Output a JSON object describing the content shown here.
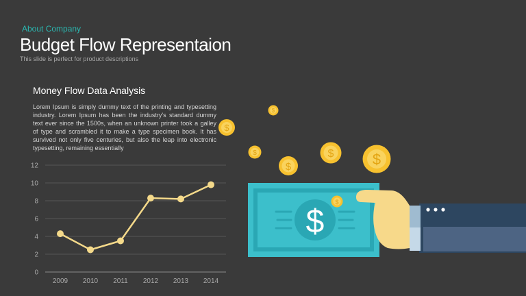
{
  "header": {
    "kicker": "About Company",
    "title": "Budget Flow Representaion",
    "subtitle": "This slide is perfect for product descriptions"
  },
  "section": {
    "title": "Money Flow Data Analysis",
    "body": "Lorem Ipsum is simply dummy text of the printing and typesetting industry. Lorem Ipsum has been the industry's standard dummy text ever since the 1500s, when an unknown printer took a galley of type and scrambled it to make a type specimen book. It has survived not only five centuries, but also the leap into electronic typesetting, remaining essentially"
  },
  "colors": {
    "background": "#3a3a3a",
    "accent": "#2bb7b0",
    "line": "#f4d98a",
    "coin": "#f7c12f",
    "bill": "#3cbfcb",
    "sleeve": "#2d4660"
  },
  "illustration": {
    "bill_symbol": "$",
    "coin_symbol": "$"
  },
  "chart_data": {
    "type": "line",
    "categories": [
      "2009",
      "2010",
      "2011",
      "2012",
      "2013",
      "2014"
    ],
    "series": [
      {
        "values": [
          4.3,
          2.5,
          3.5,
          8.3,
          8.2,
          9.8
        ]
      }
    ],
    "yticks": [
      "0",
      "2",
      "4",
      "6",
      "8",
      "10",
      "12"
    ],
    "ylim": [
      0,
      12
    ],
    "title": "",
    "xlabel": "",
    "ylabel": "",
    "grid": true
  }
}
